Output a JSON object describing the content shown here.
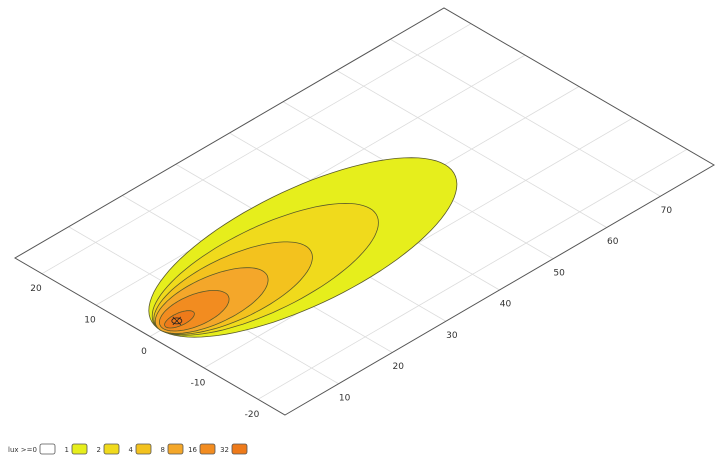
{
  "chart_data": {
    "type": "isolux",
    "xlim": [
      0,
      80
    ],
    "xticks": [
      10,
      20,
      30,
      40,
      50,
      60,
      70
    ],
    "ylim": [
      -25,
      25
    ],
    "yticks": [
      -20,
      -10,
      0,
      10,
      20
    ],
    "grid": true,
    "legend_title": "lux >=",
    "source": {
      "x": 5,
      "y": 0
    },
    "levels": [
      {
        "value": 0,
        "color": "#ffffff"
      },
      {
        "value": 1,
        "color": "#e6ee1c",
        "x_range": [
          2,
          55
        ],
        "half_width": 11
      },
      {
        "value": 2,
        "color": "#f0da1c",
        "x_range": [
          2,
          41
        ],
        "half_width": 8
      },
      {
        "value": 4,
        "color": "#f3c21e",
        "x_range": [
          2,
          29
        ],
        "half_width": 6
      },
      {
        "value": 8,
        "color": "#f4a72a",
        "x_range": [
          2,
          21
        ],
        "half_width": 4.5
      },
      {
        "value": 16,
        "color": "#f28c20",
        "x_range": [
          2.5,
          14
        ],
        "half_width": 3
      },
      {
        "value": 32,
        "color": "#ee7a1a",
        "x_range": [
          3,
          8
        ],
        "half_width": 1.2
      }
    ]
  }
}
